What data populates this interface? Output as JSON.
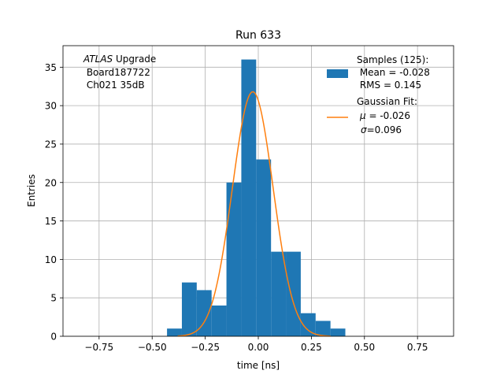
{
  "chart_data": {
    "type": "bar",
    "title": "Run 633",
    "xlabel": "time [ns]",
    "ylabel": "Entries",
    "xlim": [
      -0.92,
      0.92
    ],
    "ylim": [
      0,
      37.8
    ],
    "grid": true,
    "xticks": [
      -0.75,
      -0.5,
      -0.25,
      0.0,
      0.25,
      0.5,
      0.75
    ],
    "xtick_labels": [
      "−0.75",
      "−0.50",
      "−0.25",
      "0.00",
      "0.25",
      "0.50",
      "0.75"
    ],
    "yticks": [
      0,
      5,
      10,
      15,
      20,
      25,
      30,
      35
    ],
    "ytick_labels": [
      "0",
      "5",
      "10",
      "15",
      "20",
      "25",
      "30",
      "35"
    ],
    "histogram": {
      "bin_edges": [
        -0.43,
        -0.36,
        -0.29,
        -0.22,
        -0.15,
        -0.08,
        -0.01,
        0.06,
        0.13,
        0.2,
        0.27,
        0.34,
        0.41
      ],
      "counts": [
        1,
        7,
        6,
        4,
        20,
        36,
        23,
        11,
        11,
        3,
        2,
        1
      ],
      "color": "#1f77b4"
    },
    "gaussian_fit": {
      "mu": -0.026,
      "sigma": 0.096,
      "amplitude": 31.8,
      "x_range": [
        -0.38,
        0.34
      ],
      "color": "#ff7f0e"
    },
    "annotation": {
      "line1_italic": "ATLAS",
      "line1_rest": " Upgrade",
      "line2": " Board187722",
      "line3": " Ch021 35dB"
    },
    "legend": {
      "placement": "upper right",
      "samples_title": "Samples (125):",
      "samples_mean": " Mean = -0.028",
      "samples_rms": " RMS = 0.145",
      "fit_title": "Gaussian Fit:",
      "fit_mu_symbol": "μ",
      "fit_mu_value": " = -0.026",
      "fit_sigma_symbol": "σ",
      "fit_sigma_value": "=0.096"
    }
  }
}
